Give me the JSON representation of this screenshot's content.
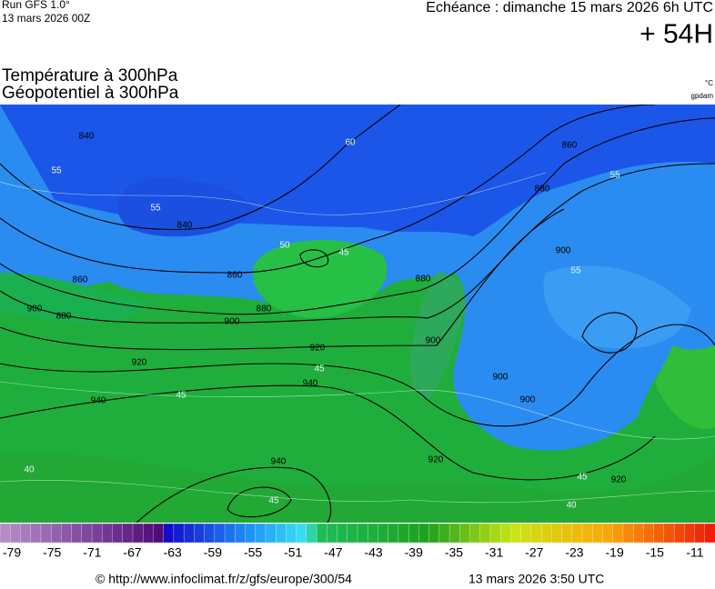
{
  "header": {
    "run": "Run GFS 1.0°",
    "run_date": "13 mars 2026 00Z",
    "valid": "Echéance : dimanche 15 mars 2026 6h UTC",
    "lead": "+ 54H",
    "title_line1": "Température à 300hPa",
    "title_line2": "Géopotentiel à 300hPa",
    "unit1": "°C",
    "unit2": "gpdam"
  },
  "map": {
    "height_labels": [
      "840",
      "840",
      "860",
      "880",
      "900",
      "920",
      "920",
      "940",
      "940",
      "940",
      "880",
      "860",
      "880",
      "900",
      "900",
      "900",
      "920",
      "920",
      "860",
      "900",
      "880",
      "900"
    ],
    "temperature_labels": [
      "60",
      "55",
      "55",
      "50",
      "45",
      "55",
      "55",
      "45",
      "45",
      "40",
      "45",
      "40",
      "45"
    ]
  },
  "colorbar": {
    "labels": [
      "-79",
      "-75",
      "-71",
      "-67",
      "-63",
      "-59",
      "-55",
      "-51",
      "-47",
      "-43",
      "-39",
      "-35",
      "-31",
      "-27",
      "-23",
      "-19",
      "-15",
      "-11"
    ]
  },
  "footer": {
    "url": "© http://www.infoclimat.fr/z/gfs/europe/300/54",
    "timestamp": "13 mars 2026  3:50 UTC"
  }
}
